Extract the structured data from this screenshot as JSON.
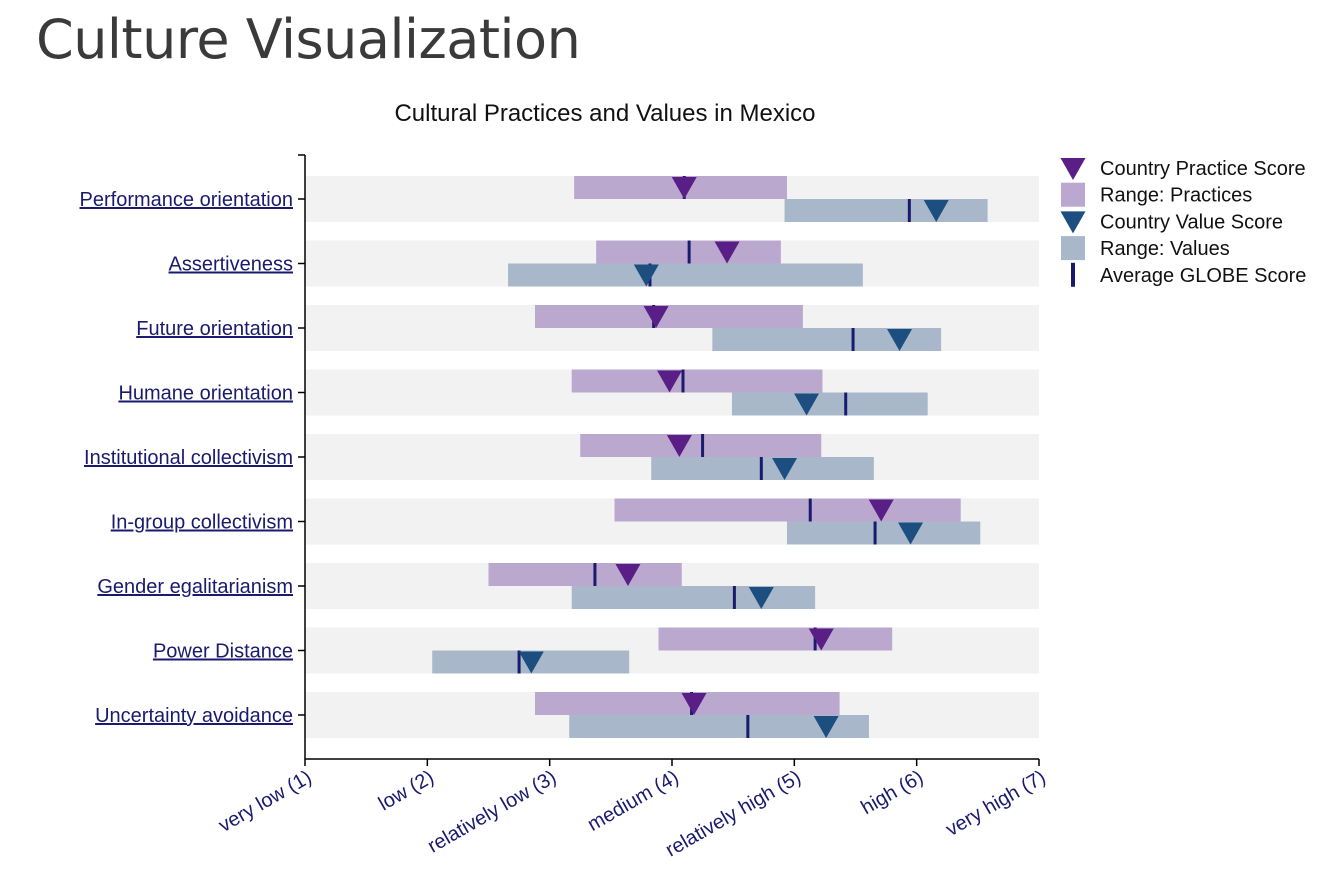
{
  "page": {
    "title": "Culture Visualization"
  },
  "colors": {
    "practice_range": "#bba8cf",
    "practice_marker": "#5a1f86",
    "value_range": "#a8b8ca",
    "value_marker": "#1c4e80",
    "globe_avg": "#1a1a6e",
    "row_background": "#f2f2f2",
    "axis": "#000000",
    "label": "#1a1a6e"
  },
  "chart_data": {
    "type": "range-bar",
    "title": "Cultural Practices and Values in Mexico",
    "xlim": [
      1,
      7
    ],
    "x_ticks": [
      {
        "value": 1,
        "label": "very low (1)"
      },
      {
        "value": 2,
        "label": "low (2)"
      },
      {
        "value": 3,
        "label": "relatively low (3)"
      },
      {
        "value": 4,
        "label": "medium (4)"
      },
      {
        "value": 5,
        "label": "relatively high (5)"
      },
      {
        "value": 6,
        "label": "high (6)"
      },
      {
        "value": 7,
        "label": "very high (7)"
      }
    ],
    "legend": [
      {
        "label": "Country Practice Score",
        "icon": "triangle-down-icon",
        "color": "#5a1f86"
      },
      {
        "label": "Range: Practices",
        "icon": "square-icon",
        "color": "#bba8cf"
      },
      {
        "label": "Country Value Score",
        "icon": "triangle-down-icon",
        "color": "#1c4e80"
      },
      {
        "label": "Range: Values",
        "icon": "square-icon",
        "color": "#a8b8ca"
      },
      {
        "label": "Average GLOBE Score",
        "icon": "bar-icon",
        "color": "#1a1a6e"
      }
    ],
    "legend_position": "right",
    "rows": [
      {
        "label": "Performance orientation",
        "practices": {
          "min": 3.2,
          "max": 4.94,
          "score": 4.1,
          "avg": 4.1
        },
        "values": {
          "min": 4.92,
          "max": 6.58,
          "score": 6.16,
          "avg": 5.94
        }
      },
      {
        "label": "Assertiveness",
        "practices": {
          "min": 3.38,
          "max": 4.89,
          "score": 4.45,
          "avg": 4.14
        },
        "values": {
          "min": 2.66,
          "max": 5.56,
          "score": 3.79,
          "avg": 3.82
        }
      },
      {
        "label": "Future orientation",
        "practices": {
          "min": 2.88,
          "max": 5.07,
          "score": 3.87,
          "avg": 3.85
        },
        "values": {
          "min": 4.33,
          "max": 6.2,
          "score": 5.86,
          "avg": 5.48
        }
      },
      {
        "label": "Humane orientation",
        "practices": {
          "min": 3.18,
          "max": 5.23,
          "score": 3.98,
          "avg": 4.09
        },
        "values": {
          "min": 4.49,
          "max": 6.09,
          "score": 5.1,
          "avg": 5.42
        }
      },
      {
        "label": "Institutional collectivism",
        "practices": {
          "min": 3.25,
          "max": 5.22,
          "score": 4.06,
          "avg": 4.25
        },
        "values": {
          "min": 3.83,
          "max": 5.65,
          "score": 4.92,
          "avg": 4.73
        }
      },
      {
        "label": "In-group collectivism",
        "practices": {
          "min": 3.53,
          "max": 6.36,
          "score": 5.71,
          "avg": 5.13
        },
        "values": {
          "min": 4.94,
          "max": 6.52,
          "score": 5.95,
          "avg": 5.66
        }
      },
      {
        "label": "Gender egalitarianism",
        "practices": {
          "min": 2.5,
          "max": 4.08,
          "score": 3.64,
          "avg": 3.37
        },
        "values": {
          "min": 3.18,
          "max": 5.17,
          "score": 4.73,
          "avg": 4.51
        }
      },
      {
        "label": "Power Distance",
        "practices": {
          "min": 3.89,
          "max": 5.8,
          "score": 5.22,
          "avg": 5.17
        },
        "values": {
          "min": 2.04,
          "max": 3.65,
          "score": 2.85,
          "avg": 2.75
        }
      },
      {
        "label": "Uncertainty avoidance",
        "practices": {
          "min": 2.88,
          "max": 5.37,
          "score": 4.18,
          "avg": 4.16
        },
        "values": {
          "min": 3.16,
          "max": 5.61,
          "score": 5.26,
          "avg": 4.62
        }
      }
    ]
  }
}
